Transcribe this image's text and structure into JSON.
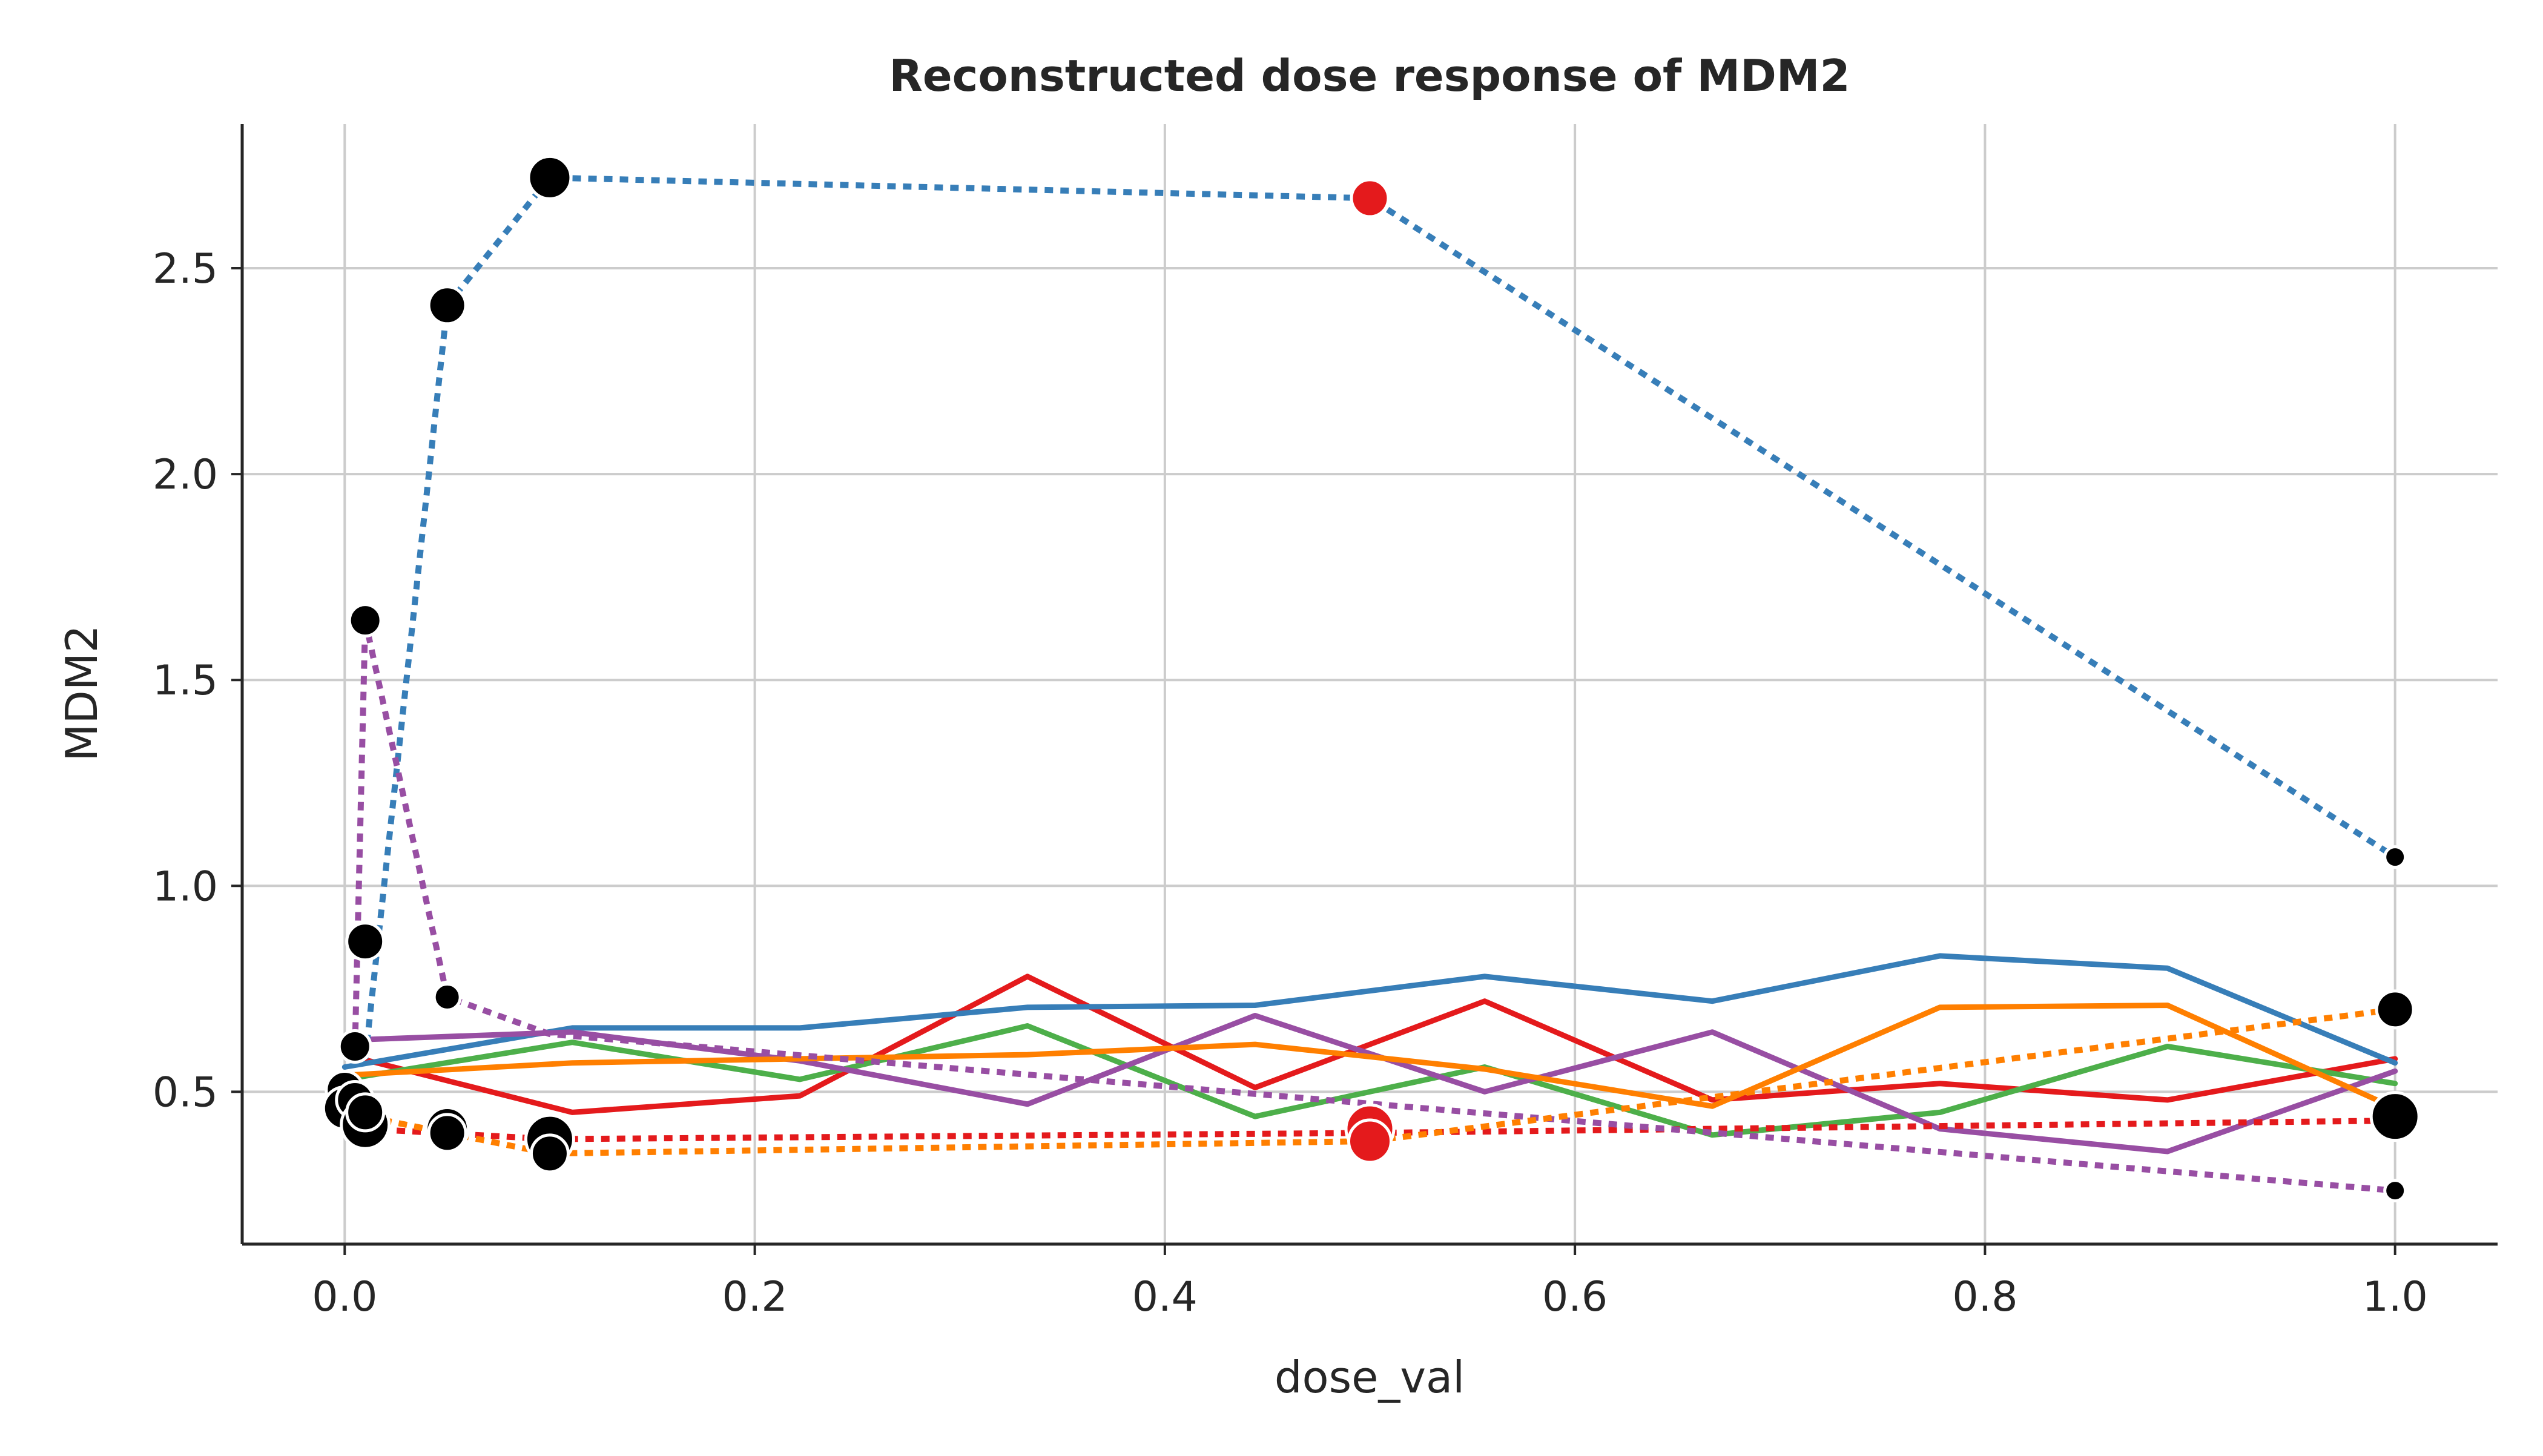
{
  "chart_data": {
    "type": "line",
    "title": "Reconstructed dose response of MDM2",
    "xlabel": "dose_val",
    "ylabel": "MDM2",
    "xlim": [
      -0.05,
      1.05
    ],
    "ylim": [
      0.13,
      2.85
    ],
    "xticks": [
      "0.0",
      "0.2",
      "0.4",
      "0.6",
      "0.8",
      "1.0"
    ],
    "xtick_values": [
      0.0,
      0.2,
      0.4,
      0.6,
      0.8,
      1.0
    ],
    "yticks": [
      "0.5",
      "1.0",
      "1.5",
      "2.0",
      "2.5"
    ],
    "ytick_values": [
      0.5,
      1.0,
      1.5,
      2.0,
      2.5
    ],
    "grid": true,
    "legend": "none",
    "solid_series": [
      {
        "color": "#e41a1c",
        "x": [
          0.0,
          0.111,
          0.222,
          0.333,
          0.444,
          0.556,
          0.667,
          0.778,
          0.889,
          1.0
        ],
        "y": [
          0.59,
          0.45,
          0.49,
          0.78,
          0.51,
          0.72,
          0.48,
          0.52,
          0.48,
          0.58
        ]
      },
      {
        "color": "#377eb8",
        "x": [
          0.0,
          0.111,
          0.222,
          0.333,
          0.444,
          0.556,
          0.667,
          0.778,
          0.889,
          1.0
        ],
        "y": [
          0.56,
          0.655,
          0.655,
          0.705,
          0.71,
          0.78,
          0.72,
          0.83,
          0.8,
          0.57
        ]
      },
      {
        "color": "#4daf4a",
        "x": [
          0.0,
          0.111,
          0.222,
          0.333,
          0.444,
          0.556,
          0.667,
          0.778,
          0.889,
          1.0
        ],
        "y": [
          0.53,
          0.62,
          0.53,
          0.66,
          0.44,
          0.56,
          0.395,
          0.45,
          0.61,
          0.52
        ]
      },
      {
        "color": "#984ea3",
        "x": [
          0.0,
          0.111,
          0.222,
          0.333,
          0.444,
          0.556,
          0.667,
          0.778,
          0.889,
          1.0
        ],
        "y": [
          0.625,
          0.645,
          0.575,
          0.47,
          0.685,
          0.5,
          0.645,
          0.41,
          0.355,
          0.55
        ]
      },
      {
        "color": "#ff7f00",
        "x": [
          0.0,
          0.111,
          0.222,
          0.333,
          0.444,
          0.556,
          0.667,
          0.778,
          0.889,
          1.0
        ],
        "y": [
          0.54,
          0.57,
          0.58,
          0.59,
          0.615,
          0.555,
          0.465,
          0.705,
          0.71,
          0.46
        ]
      }
    ],
    "dashed_series": [
      {
        "color": "#e41a1c",
        "x": [
          0.01,
          0.1,
          0.5,
          1.0
        ],
        "y": [
          0.41,
          0.385,
          0.4,
          0.43
        ]
      },
      {
        "color": "#377eb8",
        "x": [
          0.01,
          0.05,
          0.1,
          0.5,
          1.0
        ],
        "y": [
          0.58,
          2.41,
          2.72,
          2.67,
          1.07
        ]
      },
      {
        "color": "#984ea3",
        "x": [
          0.005,
          0.01,
          0.05,
          0.1,
          1.0
        ],
        "y": [
          0.61,
          1.645,
          0.73,
          0.64,
          0.26
        ]
      },
      {
        "color": "#ff7f00",
        "x": [
          0.005,
          0.01,
          0.05,
          0.1,
          0.5,
          1.0
        ],
        "y": [
          0.46,
          0.44,
          0.4,
          0.35,
          0.38,
          0.7
        ]
      }
    ],
    "observed_points": [
      {
        "x": 0.0,
        "y": 0.505,
        "size": 5,
        "color": "#000000"
      },
      {
        "x": 0.0,
        "y": 0.46,
        "size": 6,
        "color": "#000000"
      },
      {
        "x": 0.005,
        "y": 0.48,
        "size": 5,
        "color": "#000000"
      },
      {
        "x": 0.005,
        "y": 0.61,
        "size": 4,
        "color": "#000000"
      },
      {
        "x": 0.01,
        "y": 0.865,
        "size": 5,
        "color": "#000000"
      },
      {
        "x": 0.01,
        "y": 1.645,
        "size": 4,
        "color": "#000000"
      },
      {
        "x": 0.01,
        "y": 0.42,
        "size": 7,
        "color": "#000000"
      },
      {
        "x": 0.01,
        "y": 0.45,
        "size": 5,
        "color": "#000000"
      },
      {
        "x": 0.05,
        "y": 2.41,
        "size": 5,
        "color": "#000000"
      },
      {
        "x": 0.05,
        "y": 0.73,
        "size": 3,
        "color": "#000000"
      },
      {
        "x": 0.05,
        "y": 0.41,
        "size": 6,
        "color": "#000000"
      },
      {
        "x": 0.05,
        "y": 0.4,
        "size": 5,
        "color": "#000000"
      },
      {
        "x": 0.1,
        "y": 2.72,
        "size": 6,
        "color": "#000000"
      },
      {
        "x": 0.1,
        "y": 0.385,
        "size": 7,
        "color": "#000000"
      },
      {
        "x": 0.1,
        "y": 0.35,
        "size": 5,
        "color": "#000000"
      },
      {
        "x": 0.5,
        "y": 2.67,
        "size": 5,
        "color": "#e41a1c"
      },
      {
        "x": 0.5,
        "y": 0.41,
        "size": 7,
        "color": "#e41a1c"
      },
      {
        "x": 0.5,
        "y": 0.38,
        "size": 6,
        "color": "#e41a1c"
      },
      {
        "x": 1.0,
        "y": 1.07,
        "size": 2,
        "color": "#000000"
      },
      {
        "x": 1.0,
        "y": 0.7,
        "size": 5,
        "color": "#000000"
      },
      {
        "x": 1.0,
        "y": 0.44,
        "size": 7,
        "color": "#000000"
      },
      {
        "x": 1.0,
        "y": 0.26,
        "size": 2,
        "color": "#000000"
      }
    ]
  }
}
